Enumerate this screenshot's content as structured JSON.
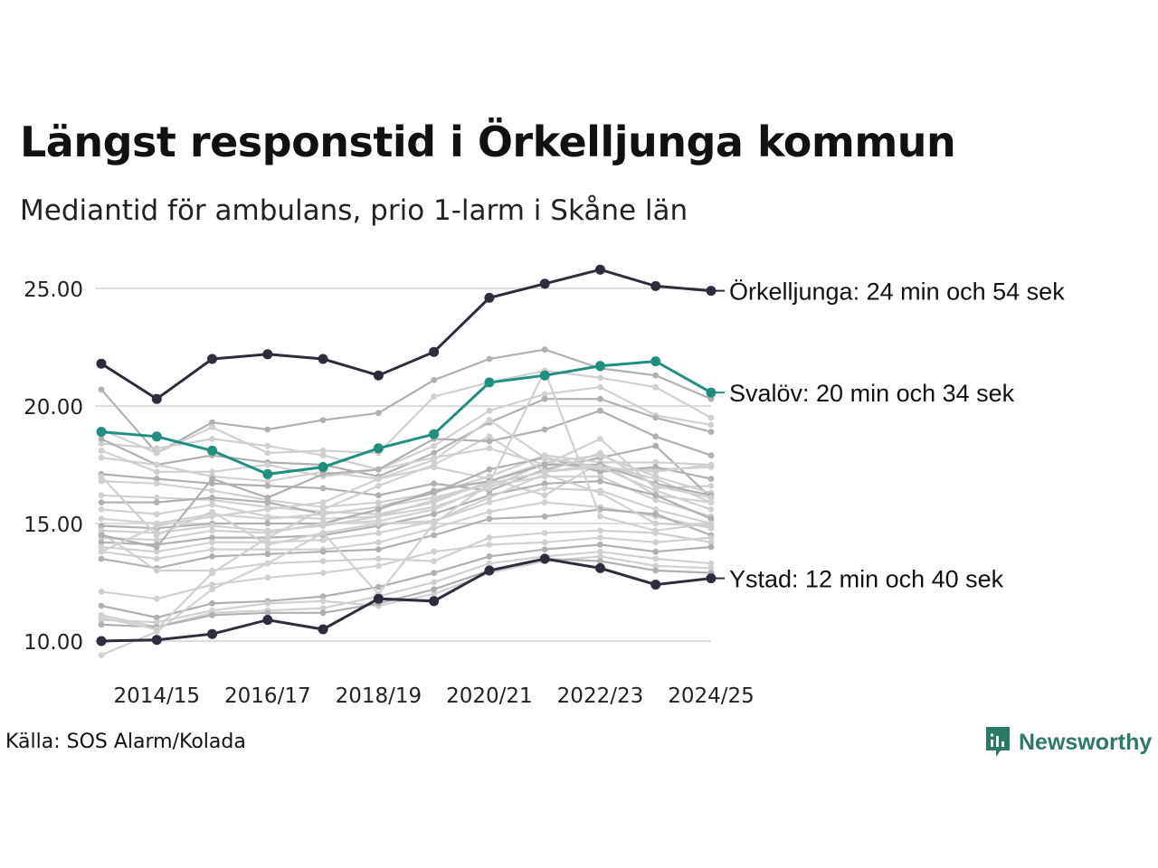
{
  "title": "Längst responstid i Örkelljunga kommun",
  "subtitle": "Mediantid för ambulans, prio 1-larm i Skåne län",
  "source": "Källa: SOS Alarm/Kolada",
  "brand": {
    "name": "Newsworthy",
    "icon": "newsworthy-logo-icon"
  },
  "colors": {
    "highlight_dark": "#2d2d3d",
    "highlight_teal": "#1f8f80",
    "background_light": "#d0d0d0",
    "background_mid": "#b0b0b0",
    "grid": "#dddddd"
  },
  "chart_data": {
    "type": "line",
    "x": [
      "2013/14",
      "2014/15",
      "2015/16",
      "2016/17",
      "2017/18",
      "2018/19",
      "2019/20",
      "2020/21",
      "2021/22",
      "2022/23",
      "2023/24",
      "2024/25"
    ],
    "tick_labels": [
      "2014/15",
      "2016/17",
      "2018/19",
      "2020/21",
      "2022/23",
      "2024/25"
    ],
    "y_ticks": [
      "10.00",
      "15.00",
      "20.00",
      "25.00"
    ],
    "ylim": [
      9.2,
      26.5
    ],
    "grid": true,
    "highlighted": [
      {
        "name": "Örkelljunga",
        "label": "Örkelljunga: 24 min och 54 sek",
        "color": "#2d2d3d",
        "values": [
          21.8,
          20.3,
          22.0,
          22.2,
          22.0,
          21.3,
          22.3,
          24.6,
          25.2,
          25.8,
          25.1,
          24.9
        ]
      },
      {
        "name": "Svalöv",
        "label": "Svalöv: 20 min och 34 sek",
        "color": "#1f8f80",
        "values": [
          18.9,
          18.7,
          18.1,
          17.1,
          17.4,
          18.2,
          18.8,
          21.0,
          21.3,
          21.7,
          21.9,
          20.57
        ]
      },
      {
        "name": "Ystad",
        "label": "Ystad: 12 min och 40 sek",
        "color": "#2d2d3d",
        "values": [
          10.0,
          10.05,
          10.3,
          10.9,
          10.5,
          11.8,
          11.7,
          13.0,
          13.5,
          13.1,
          12.4,
          12.67
        ]
      }
    ],
    "other_series": [
      [
        20.7,
        18.0,
        19.3,
        19.0,
        19.4,
        19.7,
        21.1,
        22.0,
        22.4,
        21.6,
        21.3,
        20.3
      ],
      [
        19.0,
        18.0,
        19.1,
        18.0,
        18.1,
        18.0,
        20.4,
        21.0,
        21.5,
        21.2,
        20.8,
        19.5
      ],
      [
        18.4,
        18.2,
        18.6,
        18.3,
        17.9,
        17.3,
        18.3,
        19.8,
        20.5,
        20.8,
        19.6,
        19.2
      ],
      [
        18.6,
        17.5,
        17.9,
        17.6,
        17.5,
        17.0,
        18.0,
        19.3,
        20.3,
        20.3,
        19.5,
        18.9
      ],
      [
        18.1,
        17.2,
        17.2,
        17.5,
        17.0,
        17.3,
        17.8,
        18.2,
        17.5,
        18.6,
        16.5,
        16.6
      ],
      [
        17.8,
        17.5,
        17.0,
        16.8,
        17.2,
        16.9,
        17.4,
        16.9,
        16.2,
        17.6,
        16.2,
        15.9
      ],
      [
        17.1,
        16.9,
        16.7,
        16.6,
        16.5,
        16.2,
        16.7,
        16.4,
        17.3,
        17.8,
        18.3,
        16.1
      ],
      [
        16.8,
        16.7,
        16.4,
        16.0,
        15.7,
        15.9,
        16.3,
        17.0,
        17.9,
        17.6,
        17.6,
        17.5
      ],
      [
        16.2,
        16.1,
        16.0,
        15.7,
        15.5,
        15.4,
        15.9,
        16.8,
        17.6,
        17.3,
        17.3,
        17.4
      ],
      [
        15.9,
        15.9,
        16.1,
        15.9,
        15.4,
        15.7,
        16.3,
        17.3,
        17.8,
        17.2,
        17.4,
        16.9
      ],
      [
        15.6,
        15.4,
        15.8,
        15.3,
        15.2,
        15.3,
        15.7,
        16.5,
        17.6,
        17.9,
        17.0,
        16.3
      ],
      [
        15.2,
        15.0,
        15.4,
        15.2,
        15.4,
        15.7,
        16.1,
        16.7,
        17.2,
        17.5,
        16.9,
        15.9
      ],
      [
        14.9,
        14.8,
        15.0,
        15.0,
        15.0,
        15.6,
        16.4,
        16.8,
        17.5,
        17.5,
        16.7,
        16.2
      ],
      [
        14.7,
        14.6,
        14.9,
        14.7,
        14.9,
        15.3,
        16.0,
        16.7,
        17.2,
        17.4,
        16.4,
        15.6
      ],
      [
        14.4,
        14.3,
        14.7,
        14.6,
        15.0,
        15.1,
        15.6,
        16.6,
        17.0,
        17.0,
        16.0,
        15.3
      ],
      [
        14.2,
        14.1,
        14.4,
        14.4,
        14.5,
        14.9,
        15.4,
        16.2,
        16.7,
        16.8,
        16.2,
        15.2
      ],
      [
        14.0,
        13.8,
        14.2,
        14.2,
        14.3,
        14.6,
        15.1,
        15.9,
        16.5,
        16.4,
        15.6,
        15.0
      ],
      [
        13.8,
        13.5,
        13.9,
        13.9,
        13.9,
        14.2,
        14.8,
        15.5,
        15.9,
        15.7,
        15.3,
        14.8
      ],
      [
        13.5,
        13.1,
        13.6,
        13.7,
        13.8,
        13.9,
        14.5,
        15.2,
        15.3,
        15.6,
        15.4,
        14.5
      ],
      [
        14.6,
        13.0,
        13.0,
        13.3,
        13.4,
        13.5,
        13.4,
        14.4,
        14.6,
        14.7,
        14.6,
        14.2
      ],
      [
        12.1,
        11.8,
        12.4,
        12.7,
        12.9,
        13.2,
        13.8,
        14.1,
        14.2,
        14.4,
        14.2,
        14.4
      ],
      [
        11.5,
        11.0,
        11.6,
        11.7,
        11.9,
        12.3,
        12.9,
        13.6,
        13.9,
        14.1,
        13.8,
        14.0
      ],
      [
        11.1,
        10.6,
        11.2,
        11.3,
        11.4,
        11.9,
        12.5,
        13.3,
        13.6,
        13.8,
        13.5,
        13.3
      ],
      [
        10.9,
        10.8,
        11.3,
        11.6,
        11.7,
        11.5,
        12.0,
        12.9,
        13.4,
        13.6,
        13.2,
        13.1
      ],
      [
        10.7,
        10.6,
        11.1,
        11.2,
        11.2,
        11.6,
        12.2,
        13.0,
        13.5,
        13.4,
        13.0,
        12.9
      ],
      [
        9.4,
        10.4,
        12.2,
        13.3,
        14.6,
        15.0,
        15.1,
        16.1,
        17.1,
        16.3,
        15.0,
        14.9
      ],
      [
        11.0,
        10.5,
        12.9,
        14.4,
        15.6,
        16.6,
        17.5,
        18.7,
        17.2,
        18.0,
        16.6,
        16.1
      ],
      [
        14.5,
        14.0,
        16.9,
        16.1,
        17.1,
        17.3,
        18.6,
        18.5,
        19.0,
        19.8,
        18.7,
        17.9
      ],
      [
        13.8,
        14.9,
        15.3,
        15.6,
        15.9,
        16.9,
        17.7,
        19.4,
        17.8,
        17.4,
        17.2,
        17.5
      ],
      [
        17.0,
        14.5,
        15.5,
        14.1,
        14.6,
        12.0,
        15.0,
        16.7,
        21.5,
        15.3,
        14.7,
        15.0
      ]
    ]
  }
}
